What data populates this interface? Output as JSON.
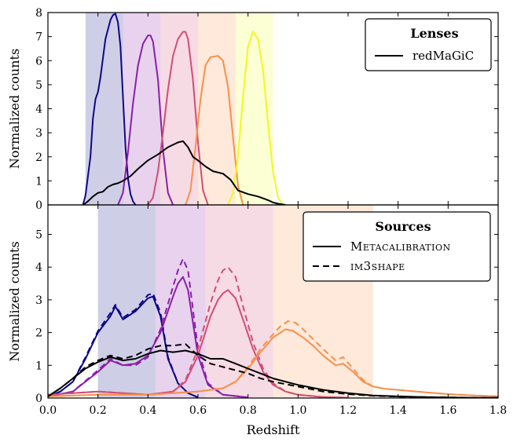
{
  "chart_data": [
    {
      "type": "line",
      "panel": "top",
      "ylabel": "Normalized counts",
      "xlim": [
        0.0,
        1.8
      ],
      "ylim": [
        0,
        8
      ],
      "xticks": [
        "0.0",
        "0.2",
        "0.4",
        "0.6",
        "0.8",
        "1.0",
        "1.2",
        "1.4",
        "1.6",
        "1.8"
      ],
      "yticks": [
        "0",
        "1",
        "2",
        "3",
        "4",
        "5",
        "6",
        "7",
        "8"
      ],
      "legend": {
        "title": "Lenses",
        "entries": [
          {
            "label": "redMaGiC",
            "style": "solid",
            "color": "#000000"
          }
        ],
        "placement": "top-right"
      },
      "bands": [
        {
          "x0": 0.15,
          "x1": 0.3,
          "color": "#0d0887"
        },
        {
          "x0": 0.3,
          "x1": 0.45,
          "color": "#8b1fa8"
        },
        {
          "x0": 0.45,
          "x1": 0.6,
          "color": "#d24d77"
        },
        {
          "x0": 0.6,
          "x1": 0.75,
          "color": "#f8904a"
        },
        {
          "x0": 0.75,
          "x1": 0.9,
          "color": "#f0f921"
        }
      ],
      "series": [
        {
          "color": "#0d0887",
          "style": "solid",
          "x": [
            0.14,
            0.15,
            0.17,
            0.18,
            0.19,
            0.2,
            0.21,
            0.23,
            0.25,
            0.26,
            0.27,
            0.28,
            0.29,
            0.3,
            0.31,
            0.32,
            0.33,
            0.34,
            0.35
          ],
          "y": [
            0,
            0.4,
            2.0,
            3.6,
            4.4,
            4.7,
            5.3,
            6.9,
            7.7,
            7.9,
            7.95,
            7.6,
            6.6,
            4.5,
            2.4,
            1.1,
            0.45,
            0.15,
            0
          ]
        },
        {
          "color": "#8b1fa8",
          "style": "solid",
          "x": [
            0.28,
            0.3,
            0.32,
            0.34,
            0.36,
            0.38,
            0.4,
            0.41,
            0.42,
            0.44,
            0.46,
            0.48,
            0.5
          ],
          "y": [
            0,
            0.5,
            2.2,
            4.2,
            5.8,
            6.7,
            7.05,
            7.05,
            6.8,
            5.2,
            2.3,
            0.5,
            0
          ]
        },
        {
          "color": "#d24d77",
          "style": "solid",
          "x": [
            0.4,
            0.42,
            0.44,
            0.46,
            0.48,
            0.5,
            0.52,
            0.54,
            0.55,
            0.56,
            0.58,
            0.6,
            0.62,
            0.64
          ],
          "y": [
            0,
            0.3,
            1.4,
            3.0,
            4.8,
            6.2,
            6.9,
            7.2,
            7.2,
            6.9,
            5.2,
            2.6,
            0.6,
            0
          ]
        },
        {
          "color": "#f8904a",
          "style": "solid",
          "x": [
            0.55,
            0.57,
            0.59,
            0.61,
            0.63,
            0.65,
            0.68,
            0.7,
            0.72,
            0.74,
            0.76,
            0.78
          ],
          "y": [
            0,
            0.6,
            2.4,
            4.4,
            5.8,
            6.15,
            6.2,
            6.0,
            4.9,
            2.8,
            0.8,
            0
          ]
        },
        {
          "color": "#f0f921",
          "style": "solid",
          "x": [
            0.72,
            0.74,
            0.76,
            0.78,
            0.8,
            0.82,
            0.84,
            0.86,
            0.88,
            0.9,
            0.92,
            0.94
          ],
          "y": [
            0,
            0.5,
            2.0,
            4.5,
            6.6,
            7.2,
            6.9,
            5.6,
            3.4,
            1.4,
            0.3,
            0
          ]
        },
        {
          "color": "#000000",
          "style": "solid",
          "x": [
            0.14,
            0.16,
            0.18,
            0.2,
            0.22,
            0.24,
            0.26,
            0.28,
            0.3,
            0.33,
            0.36,
            0.4,
            0.44,
            0.48,
            0.52,
            0.54,
            0.56,
            0.58,
            0.6,
            0.63,
            0.66,
            0.7,
            0.73,
            0.76,
            0.8,
            0.84,
            0.88,
            0.9,
            0.92,
            0.95
          ],
          "y": [
            0,
            0.15,
            0.35,
            0.5,
            0.55,
            0.75,
            0.85,
            0.9,
            1.0,
            1.2,
            1.5,
            1.85,
            2.1,
            2.4,
            2.6,
            2.65,
            2.4,
            2.0,
            1.85,
            1.6,
            1.4,
            1.3,
            1.05,
            0.6,
            0.45,
            0.35,
            0.2,
            0.1,
            0.05,
            0
          ]
        }
      ]
    },
    {
      "type": "line",
      "panel": "bottom",
      "xlabel": "Redshift",
      "ylabel": "Normalized counts",
      "xlim": [
        0.0,
        1.8
      ],
      "ylim": [
        0,
        5.9
      ],
      "xticks": [
        "0.0",
        "0.2",
        "0.4",
        "0.6",
        "0.8",
        "1.0",
        "1.2",
        "1.4",
        "1.6",
        "1.8"
      ],
      "yticks": [
        "0",
        "1",
        "2",
        "3",
        "4",
        "5"
      ],
      "legend": {
        "title": "Sources",
        "entries": [
          {
            "label": "Metacalibration",
            "style": "solid",
            "color": "#000000"
          },
          {
            "label": "im3shape",
            "style": "dashed",
            "color": "#000000"
          }
        ],
        "placement": "top-right"
      },
      "bands": [
        {
          "x0": 0.2,
          "x1": 0.43,
          "color": "#0d0887"
        },
        {
          "x0": 0.43,
          "x1": 0.63,
          "color": "#8b1fa8"
        },
        {
          "x0": 0.63,
          "x1": 0.9,
          "color": "#d24d77"
        },
        {
          "x0": 0.9,
          "x1": 1.3,
          "color": "#f8904a"
        }
      ],
      "series": [
        {
          "color": "#0d0887",
          "style": "solid",
          "x": [
            0.0,
            0.05,
            0.1,
            0.15,
            0.2,
            0.25,
            0.27,
            0.3,
            0.35,
            0.4,
            0.42,
            0.45,
            0.48,
            0.52,
            0.56,
            0.6
          ],
          "y": [
            0.05,
            0.2,
            0.5,
            1.2,
            2.0,
            2.5,
            2.8,
            2.4,
            2.65,
            3.05,
            3.1,
            2.5,
            1.2,
            0.45,
            0.15,
            0.02
          ]
        },
        {
          "color": "#0d0887",
          "style": "dashed",
          "x": [
            0.0,
            0.05,
            0.1,
            0.15,
            0.2,
            0.25,
            0.27,
            0.3,
            0.35,
            0.4,
            0.42,
            0.45,
            0.48,
            0.52,
            0.56,
            0.6
          ],
          "y": [
            0.05,
            0.2,
            0.5,
            1.25,
            2.05,
            2.6,
            2.85,
            2.45,
            2.7,
            3.15,
            3.2,
            2.6,
            1.25,
            0.45,
            0.15,
            0.02
          ]
        },
        {
          "color": "#8b1fa8",
          "style": "solid",
          "x": [
            0.0,
            0.1,
            0.2,
            0.25,
            0.3,
            0.35,
            0.4,
            0.45,
            0.5,
            0.52,
            0.54,
            0.56,
            0.58,
            0.6,
            0.64,
            0.7,
            0.8
          ],
          "y": [
            0.05,
            0.2,
            0.8,
            1.15,
            1.0,
            1.05,
            1.3,
            2.0,
            3.1,
            3.5,
            3.7,
            3.3,
            2.3,
            1.3,
            0.4,
            0.1,
            0.02
          ]
        },
        {
          "color": "#8b1fa8",
          "style": "dashed",
          "x": [
            0.0,
            0.1,
            0.2,
            0.25,
            0.3,
            0.35,
            0.4,
            0.45,
            0.5,
            0.52,
            0.54,
            0.56,
            0.58,
            0.6,
            0.64,
            0.7,
            0.8
          ],
          "y": [
            0.05,
            0.2,
            0.85,
            1.2,
            1.0,
            1.0,
            1.25,
            2.1,
            3.4,
            3.9,
            4.25,
            3.9,
            2.7,
            1.5,
            0.45,
            0.1,
            0.02
          ]
        },
        {
          "color": "#d24d77",
          "style": "solid",
          "x": [
            0.0,
            0.2,
            0.3,
            0.4,
            0.5,
            0.55,
            0.6,
            0.65,
            0.68,
            0.7,
            0.72,
            0.75,
            0.78,
            0.82,
            0.86,
            0.9,
            0.95,
            1.0,
            1.1,
            1.2
          ],
          "y": [
            0.1,
            0.2,
            0.15,
            0.1,
            0.2,
            0.5,
            1.3,
            2.5,
            3.0,
            3.2,
            3.3,
            3.05,
            2.4,
            1.5,
            0.8,
            0.4,
            0.2,
            0.1,
            0.03,
            0.01
          ]
        },
        {
          "color": "#d24d77",
          "style": "dashed",
          "x": [
            0.0,
            0.2,
            0.3,
            0.4,
            0.5,
            0.55,
            0.6,
            0.65,
            0.68,
            0.7,
            0.72,
            0.75,
            0.78,
            0.82,
            0.86,
            0.9,
            0.95,
            1.0,
            1.1,
            1.2
          ],
          "y": [
            0.1,
            0.2,
            0.15,
            0.1,
            0.2,
            0.55,
            1.5,
            2.9,
            3.6,
            3.9,
            4.0,
            3.7,
            2.8,
            1.7,
            0.9,
            0.45,
            0.2,
            0.1,
            0.03,
            0.01
          ]
        },
        {
          "color": "#f8904a",
          "style": "solid",
          "x": [
            0.0,
            0.2,
            0.4,
            0.6,
            0.7,
            0.75,
            0.8,
            0.85,
            0.9,
            0.93,
            0.95,
            0.98,
            1.02,
            1.06,
            1.1,
            1.15,
            1.18,
            1.22,
            1.26,
            1.3,
            1.35,
            1.4,
            1.5,
            1.6,
            1.7,
            1.8
          ],
          "y": [
            0.05,
            0.1,
            0.1,
            0.2,
            0.3,
            0.5,
            0.9,
            1.4,
            1.85,
            2.0,
            2.1,
            2.05,
            1.85,
            1.6,
            1.3,
            1.0,
            1.05,
            0.8,
            0.5,
            0.35,
            0.28,
            0.25,
            0.18,
            0.12,
            0.08,
            0.05
          ]
        },
        {
          "color": "#f8904a",
          "style": "dashed",
          "x": [
            0.0,
            0.2,
            0.4,
            0.6,
            0.7,
            0.75,
            0.8,
            0.85,
            0.9,
            0.93,
            0.96,
            0.99,
            1.02,
            1.06,
            1.1,
            1.15,
            1.18,
            1.22,
            1.26,
            1.3,
            1.35,
            1.4,
            1.5,
            1.6,
            1.7,
            1.8
          ],
          "y": [
            0.05,
            0.1,
            0.1,
            0.2,
            0.3,
            0.5,
            0.95,
            1.5,
            1.95,
            2.2,
            2.35,
            2.3,
            2.1,
            1.8,
            1.5,
            1.15,
            1.25,
            0.9,
            0.55,
            0.35,
            0.28,
            0.25,
            0.18,
            0.12,
            0.08,
            0.05
          ]
        },
        {
          "color": "#000000",
          "style": "solid",
          "x": [
            0.0,
            0.05,
            0.1,
            0.15,
            0.2,
            0.25,
            0.3,
            0.35,
            0.4,
            0.45,
            0.5,
            0.55,
            0.6,
            0.65,
            0.7,
            0.75,
            0.8,
            0.85,
            0.9,
            1.0,
            1.1,
            1.2,
            1.3,
            1.4,
            1.5,
            1.6,
            1.7,
            1.8
          ],
          "y": [
            0.05,
            0.3,
            0.6,
            0.9,
            1.1,
            1.25,
            1.15,
            1.2,
            1.35,
            1.45,
            1.4,
            1.45,
            1.35,
            1.2,
            1.2,
            1.05,
            0.9,
            0.75,
            0.6,
            0.4,
            0.25,
            0.15,
            0.08,
            0.05,
            0.03,
            0.02,
            0.01,
            0.01
          ]
        },
        {
          "color": "#000000",
          "style": "dashed",
          "x": [
            0.0,
            0.05,
            0.1,
            0.15,
            0.2,
            0.25,
            0.3,
            0.35,
            0.4,
            0.45,
            0.5,
            0.55,
            0.6,
            0.65,
            0.7,
            0.75,
            0.8,
            0.85,
            0.9,
            1.0,
            1.1,
            1.2,
            1.3,
            1.4,
            1.5,
            1.6,
            1.7,
            1.8
          ],
          "y": [
            0.05,
            0.3,
            0.6,
            0.95,
            1.15,
            1.3,
            1.2,
            1.3,
            1.5,
            1.6,
            1.6,
            1.65,
            1.3,
            1.05,
            0.95,
            0.85,
            0.75,
            0.6,
            0.5,
            0.35,
            0.2,
            0.12,
            0.07,
            0.04,
            0.03,
            0.02,
            0.01,
            0.01
          ]
        }
      ]
    }
  ]
}
